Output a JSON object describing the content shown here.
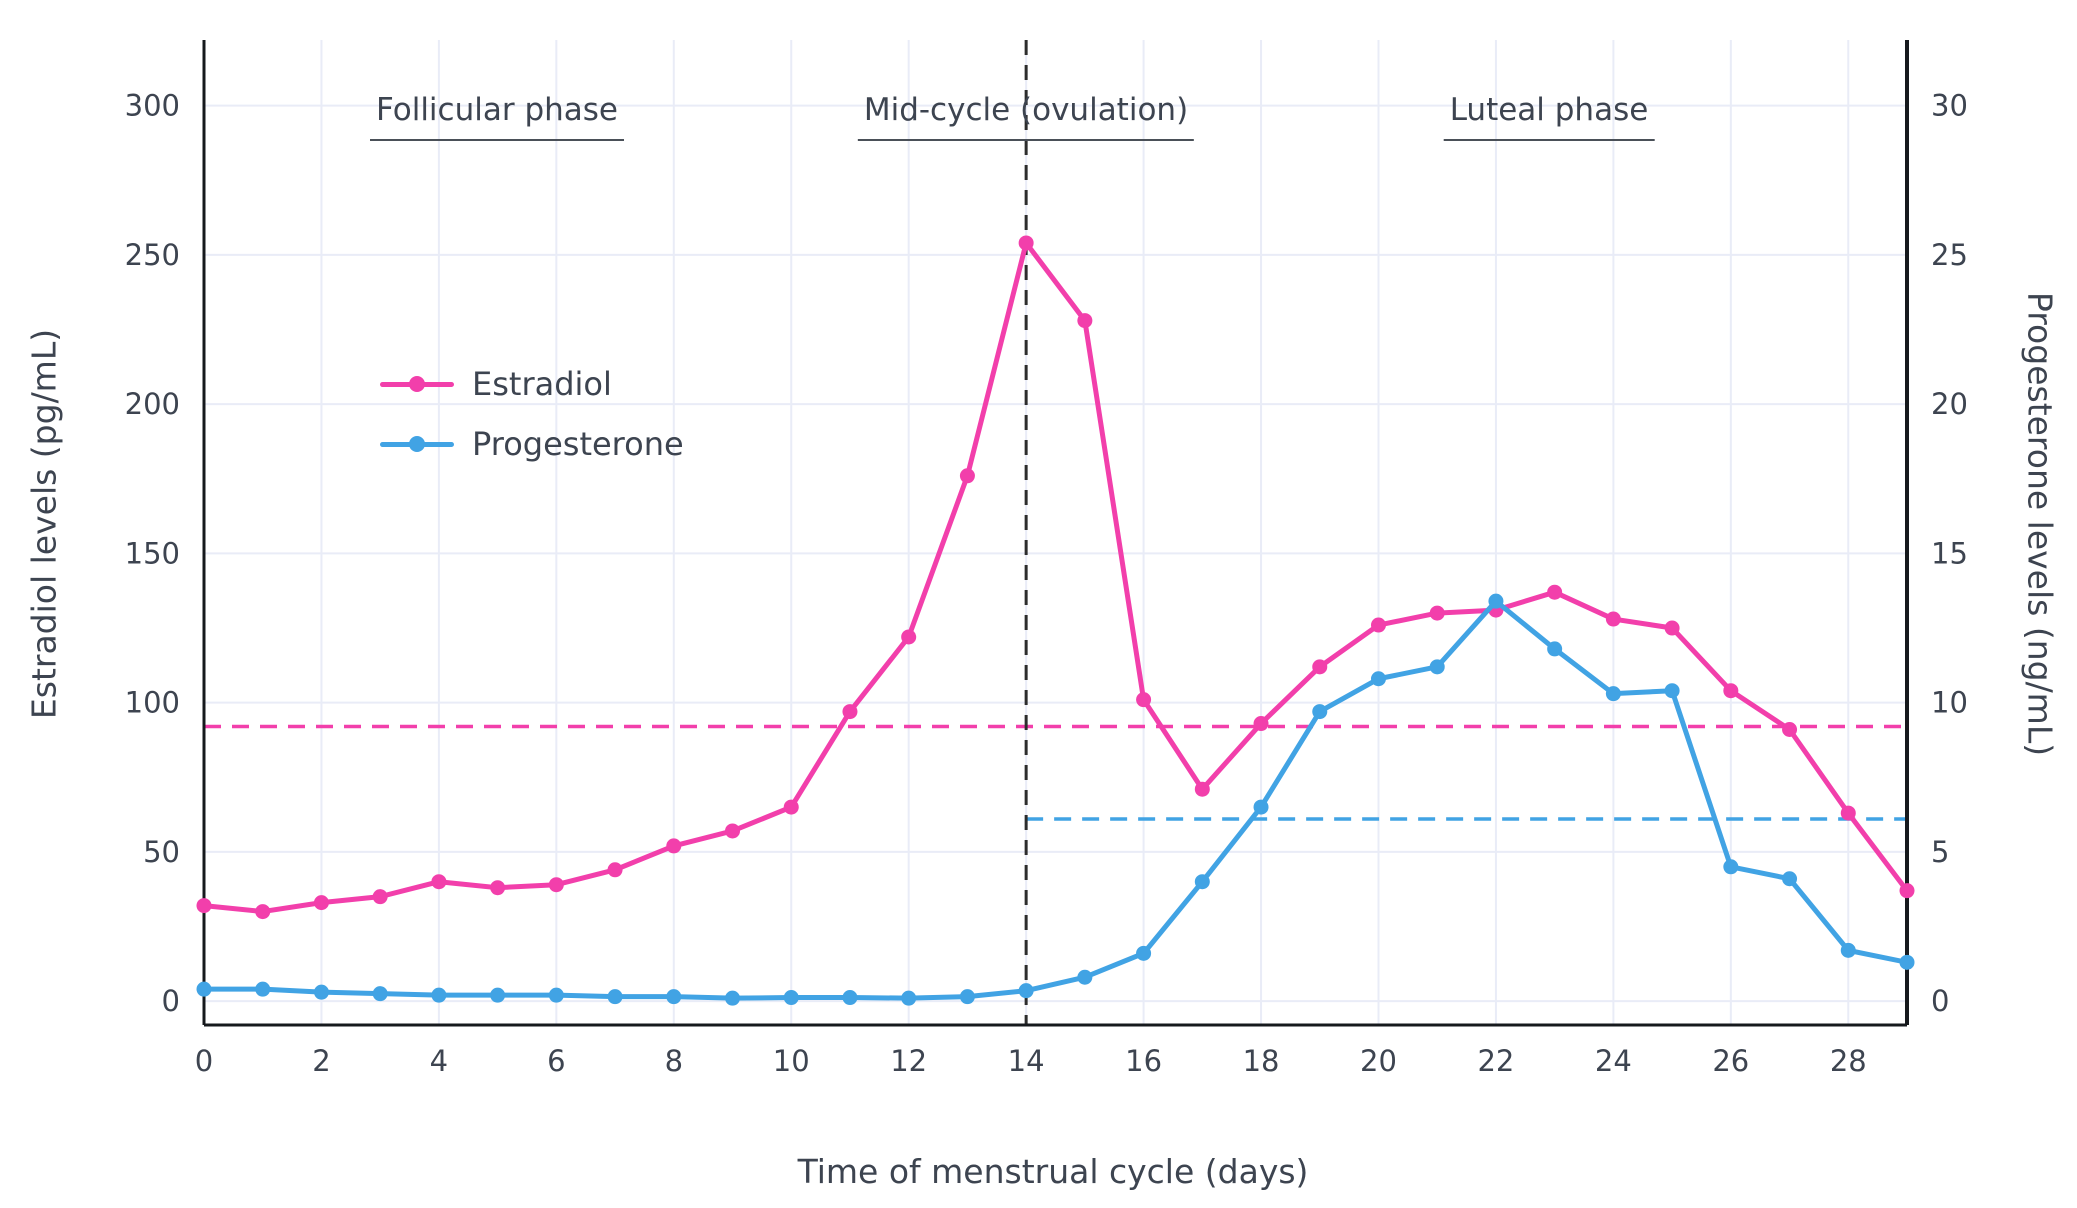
{
  "chart_data": {
    "type": "line",
    "title": "",
    "xlabel": "Time of menstrual cycle (days)",
    "ylabel_left": "Estradiol levels (pg/mL)",
    "ylabel_right": "Progesterone levels (ng/mL)",
    "x": [
      0,
      1,
      2,
      3,
      4,
      5,
      6,
      7,
      8,
      9,
      10,
      11,
      12,
      13,
      14,
      15,
      16,
      17,
      18,
      19,
      20,
      21,
      22,
      23,
      24,
      25,
      26,
      27,
      28,
      29
    ],
    "x_ticks": [
      0,
      2,
      4,
      6,
      8,
      10,
      12,
      14,
      16,
      18,
      20,
      22,
      24,
      26,
      28
    ],
    "left_ticks": [
      0,
      50,
      100,
      150,
      200,
      250,
      300
    ],
    "right_ticks": [
      0,
      5,
      10,
      15,
      20,
      25,
      30
    ],
    "x_range": [
      0,
      29
    ],
    "left_range": [
      -8,
      322
    ],
    "right_axis_scale": 10,
    "grid": true,
    "legend_position": "upper-left-inside",
    "colors": {
      "estradiol": "#f23fab",
      "progesterone": "#41a3e4",
      "grid": "#e9ecf7",
      "axis": "#16191d",
      "vline": "#2d2d2d",
      "text": "#3d4450"
    },
    "series": [
      {
        "name": "Estradiol",
        "axis": "left",
        "unit": "pg/mL",
        "color": "#f23fab",
        "values": [
          32,
          30,
          33,
          35,
          40,
          38,
          39,
          44,
          52,
          57,
          65,
          97,
          122,
          176,
          254,
          228,
          101,
          71,
          93,
          112,
          126,
          130,
          131,
          137,
          128,
          125,
          104,
          91,
          63,
          37
        ]
      },
      {
        "name": "Progesterone",
        "axis": "right",
        "unit": "ng/mL",
        "color": "#41a3e4",
        "values": [
          0.4,
          0.4,
          0.3,
          0.25,
          0.2,
          0.2,
          0.2,
          0.15,
          0.15,
          0.1,
          0.12,
          0.12,
          0.1,
          0.15,
          0.35,
          0.8,
          1.6,
          4.0,
          6.5,
          9.7,
          10.8,
          11.2,
          13.4,
          11.8,
          10.3,
          10.4,
          4.5,
          4.1,
          1.7,
          1.3
        ]
      }
    ],
    "annotations": {
      "phase_labels": [
        {
          "label": "Follicular phase"
        },
        {
          "label": "Mid-cycle (ovulation)"
        },
        {
          "label": "Luteal phase"
        }
      ],
      "ovulation_vline_day": 14,
      "estradiol_threshold_line": {
        "value": 92,
        "from_day": 0,
        "to_day": 29
      },
      "progesterone_threshold_line": {
        "value": 6.1,
        "from_day": 14,
        "to_day": 29
      }
    },
    "legend": {
      "items": [
        "Estradiol",
        "Progesterone"
      ]
    }
  }
}
